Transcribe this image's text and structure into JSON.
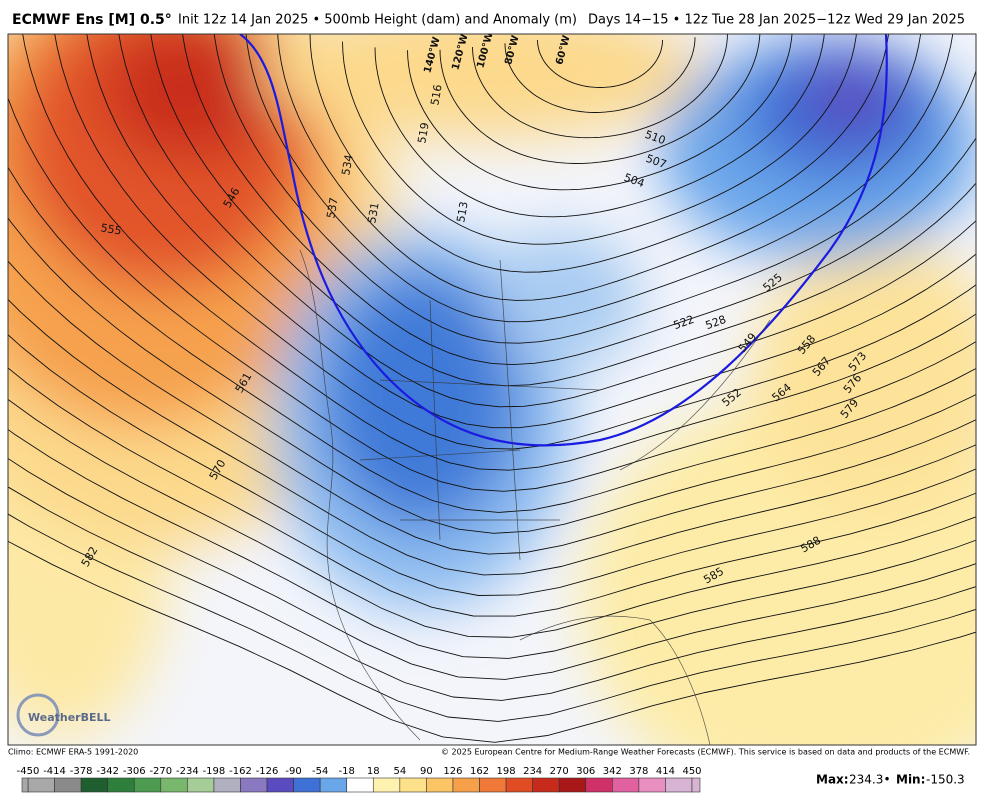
{
  "header": {
    "model": "ECMWF Ens [M] 0.5°",
    "description": "Init 12z 14 Jan 2025 • 500mb Height (dam) and Anomaly (m)",
    "valid": "Days 14−15 • 12z Tue 28 Jan 2025−12z Wed 29 Jan 2025"
  },
  "map": {
    "contour_labels": [
      "555",
      "546",
      "561",
      "570",
      "582",
      "534",
      "537",
      "531",
      "516",
      "519",
      "513",
      "510",
      "507",
      "504",
      "525",
      "522",
      "528",
      "549",
      "558",
      "567",
      "573",
      "576",
      "579",
      "564",
      "552",
      "588",
      "585"
    ],
    "longitude_labels": [
      "140°W",
      "120°W",
      "100°W",
      "80°W",
      "60°W"
    ],
    "logo": "WeatherBELL"
  },
  "footer": {
    "climo": "Climo: ECMWF ERA-5 1991-2020",
    "copyright": "© 2025 European Centre for Medium-Range Weather Forecasts (ECMWF). This service is based on data and products of the ECMWF."
  },
  "colorbar": {
    "labels": [
      "-450",
      "-414",
      "-378",
      "-342",
      "-306",
      "-270",
      "-234",
      "-198",
      "-162",
      "-126",
      "-90",
      "-54",
      "-18",
      "18",
      "54",
      "90",
      "126",
      "162",
      "198",
      "234",
      "270",
      "306",
      "342",
      "378",
      "414",
      "450"
    ],
    "colors": [
      "#a8a8a8",
      "#8a8a8a",
      "#1f5f2f",
      "#2f7f3c",
      "#4d9b50",
      "#78b76c",
      "#a6cd98",
      "#b0b0c0",
      "#8a78c0",
      "#5a4cc0",
      "#3f70d6",
      "#6aa6ea",
      "#ffffff",
      "#fff2b0",
      "#fde08a",
      "#fbc565",
      "#f7a04a",
      "#f07838",
      "#e04c24",
      "#c82a1c",
      "#a81818",
      "#d03068",
      "#e060a0",
      "#ea90c0",
      "#d8b4d4"
    ]
  },
  "stats": {
    "max_label": "Max:",
    "max": "234.3",
    "min_label": "Min:",
    "min": "-150.3"
  }
}
